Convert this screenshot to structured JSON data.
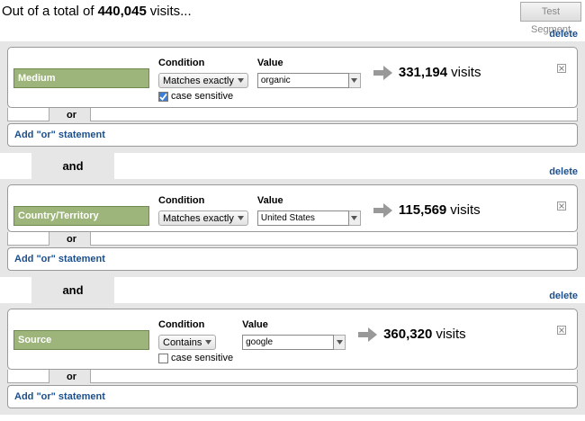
{
  "header": {
    "prefix": "Out of a total of",
    "total": "440,045",
    "suffix": "visits...",
    "button": "Test Segment"
  },
  "groups": [
    {
      "delete": "delete",
      "condition": {
        "dimension": "Medium",
        "condition_label": "Condition",
        "match": "Matches exactly",
        "value_label": "Value",
        "value": "organic",
        "case_sensitive": {
          "label": "case sensitive",
          "checked": true
        },
        "count": "331,194",
        "unit": "visits"
      },
      "or_label": "or",
      "add_or": "Add \"or\" statement"
    },
    {
      "connector": "and",
      "delete": "delete",
      "condition": {
        "dimension": "Country/Territory",
        "condition_label": "Condition",
        "match": "Matches exactly",
        "value_label": "Value",
        "value": "United States",
        "count": "115,569",
        "unit": "visits"
      },
      "or_label": "or",
      "add_or": "Add \"or\" statement"
    },
    {
      "connector": "and",
      "delete": "delete",
      "condition": {
        "dimension": "Source",
        "condition_label": "Condition",
        "match": "Contains",
        "value_label": "Value",
        "value": "google",
        "case_sensitive": {
          "label": "case sensitive",
          "checked": false
        },
        "count": "360,320",
        "unit": "visits"
      },
      "or_label": "or",
      "add_or": "Add \"or\" statement"
    }
  ]
}
